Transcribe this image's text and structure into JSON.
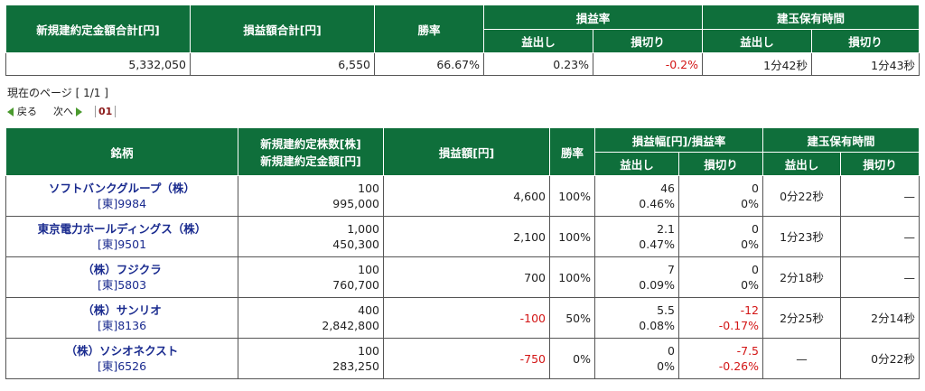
{
  "summary": {
    "headers": {
      "new_total": "新規建約定金額合計[円]",
      "pl_total": "損益額合計[円]",
      "win_rate": "勝率",
      "pl_rate": "損益率",
      "hold_time": "建玉保有時間",
      "profit": "益出し",
      "loss": "損切り"
    },
    "values": {
      "new_total": "5,332,050",
      "pl_total": "6,550",
      "win_rate": "66.67%",
      "pl_rate_profit": "0.23%",
      "pl_rate_loss": "-0.2%",
      "hold_profit": "1分42秒",
      "hold_loss": "1分43秒"
    }
  },
  "pager": {
    "current_label": "現在のページ [ 1/1 ]",
    "prev": "戻る",
    "next": "次へ",
    "page": "01"
  },
  "detail": {
    "headers": {
      "stock": "銘柄",
      "shares_line1": "新規建約定株数[株]",
      "shares_line2": "新規建約定金額[円]",
      "pl": "損益額[円]",
      "win_rate": "勝率",
      "pl_range": "損益幅[円]/損益率",
      "hold_time": "建玉保有時間",
      "profit": "益出し",
      "loss": "損切り",
      "hold_profit": "益出し",
      "hold_loss": "損切り"
    },
    "rows": [
      {
        "name": "ソフトバンクグループ（株）",
        "code": "[東]9984",
        "shares": "100",
        "amount": "995,000",
        "pl": "4,600",
        "pl_neg": false,
        "win": "100%",
        "profit_range": "46",
        "profit_rate": "0.46%",
        "loss_range": "0",
        "loss_rate": "0%",
        "loss_neg": false,
        "hold_profit": "0分22秒",
        "hold_loss": "—"
      },
      {
        "name": "東京電力ホールディングス（株）",
        "code": "[東]9501",
        "shares": "1,000",
        "amount": "450,300",
        "pl": "2,100",
        "pl_neg": false,
        "win": "100%",
        "profit_range": "2.1",
        "profit_rate": "0.47%",
        "loss_range": "0",
        "loss_rate": "0%",
        "loss_neg": false,
        "hold_profit": "1分23秒",
        "hold_loss": "—"
      },
      {
        "name": "（株）フジクラ",
        "code": "[東]5803",
        "shares": "100",
        "amount": "760,700",
        "pl": "700",
        "pl_neg": false,
        "win": "100%",
        "profit_range": "7",
        "profit_rate": "0.09%",
        "loss_range": "0",
        "loss_rate": "0%",
        "loss_neg": false,
        "hold_profit": "2分18秒",
        "hold_loss": "—"
      },
      {
        "name": "（株）サンリオ",
        "code": "[東]8136",
        "shares": "400",
        "amount": "2,842,800",
        "pl": "-100",
        "pl_neg": true,
        "win": "50%",
        "profit_range": "5.5",
        "profit_rate": "0.08%",
        "loss_range": "-12",
        "loss_rate": "-0.17%",
        "loss_neg": true,
        "hold_profit": "2分25秒",
        "hold_loss": "2分14秒"
      },
      {
        "name": "（株）ソシオネクスト",
        "code": "[東]6526",
        "shares": "100",
        "amount": "283,250",
        "pl": "-750",
        "pl_neg": true,
        "win": "0%",
        "profit_range": "0",
        "profit_rate": "0%",
        "loss_range": "-7.5",
        "loss_rate": "-0.26%",
        "loss_neg": true,
        "hold_profit": "—",
        "hold_loss": "0分22秒"
      }
    ]
  },
  "colors": {
    "header_bg": "#0f6f3b",
    "negative": "#d31616",
    "link": "#1a2b8f"
  }
}
